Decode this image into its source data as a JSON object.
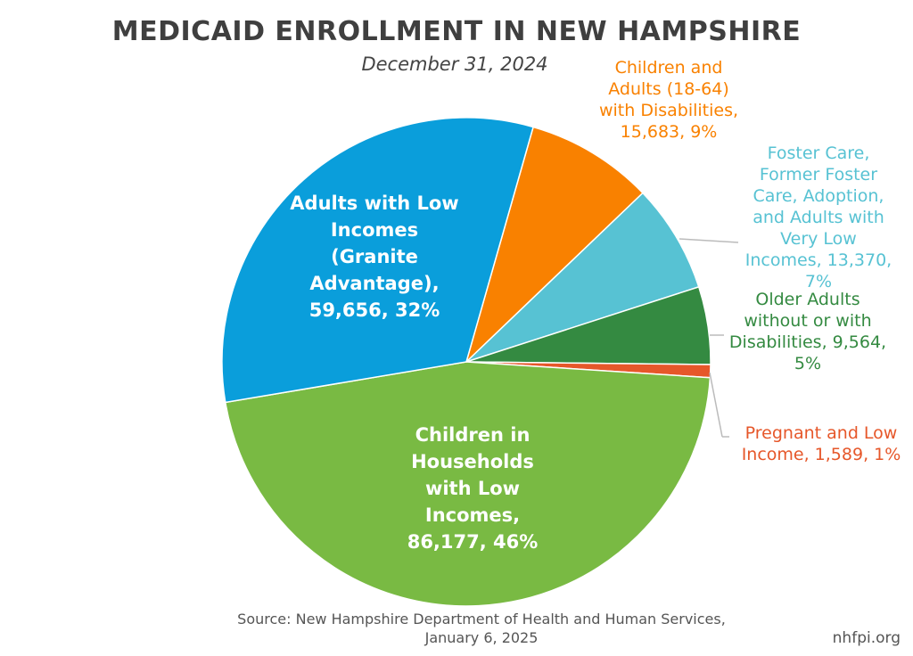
{
  "chart_data": {
    "type": "pie",
    "title": "MEDICAID ENROLLMENT IN NEW HAMPSHIRE",
    "subtitle": "December 31, 2024",
    "slices": [
      {
        "label_lines": [
          "Children and",
          "Adults (18-64)",
          "with Disabilities,",
          "15,683, 9%"
        ],
        "value": 15683,
        "percent": 9,
        "color": "#f98100"
      },
      {
        "label_lines": [
          "Foster Care,",
          "Former Foster",
          "Care, Adoption,",
          "and Adults with",
          "Very Low",
          "Incomes, 13,370,",
          "7%"
        ],
        "value": 13370,
        "percent": 7,
        "color": "#57c2d3"
      },
      {
        "label_lines": [
          "Older Adults",
          "without or with",
          "Disabilities, 9,564,",
          "5%"
        ],
        "value": 9564,
        "percent": 5,
        "color": "#348a41"
      },
      {
        "label_lines": [
          "Pregnant and Low",
          "Income, 1,589, 1%"
        ],
        "value": 1589,
        "percent": 1,
        "color": "#e6572a"
      },
      {
        "label_lines": [
          "Children in",
          "Households",
          "with Low",
          "Incomes,",
          "86,177, 46%"
        ],
        "value": 86177,
        "percent": 46,
        "color": "#79ba43"
      },
      {
        "label_lines": [
          "Adults with Low",
          "Incomes",
          "(Granite",
          "Advantage),",
          "59,656, 32%"
        ],
        "value": 59656,
        "percent": 32,
        "color": "#0a9edb"
      }
    ]
  },
  "source": [
    "Source: New Hampshire Department of Health and Human Services,",
    "January 6, 2025"
  ],
  "site": "nhfpi.org"
}
